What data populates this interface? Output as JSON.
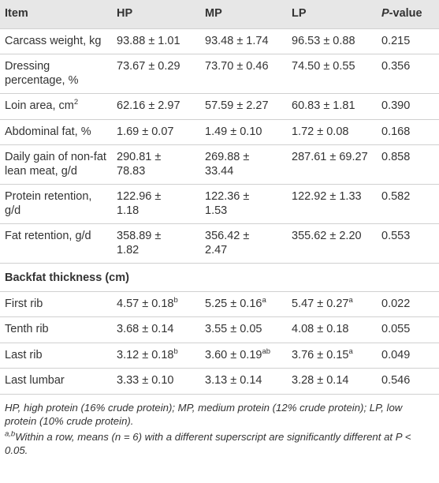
{
  "table": {
    "header": {
      "item": "Item",
      "hp": "HP",
      "mp": "MP",
      "lp": "LP",
      "p_italic": "P",
      "p_rest": "-value"
    },
    "rows": [
      {
        "item": "Carcass weight, kg",
        "hp": "93.88 ± 1.01",
        "mp": "93.48 ± 1.74",
        "lp": "96.53 ± 0.88",
        "p": "0.215"
      },
      {
        "item": "Dressing percentage, %",
        "hp": "73.67 ± 0.29",
        "mp": "73.70 ± 0.46",
        "lp": "74.50 ± 0.55",
        "p": "0.356"
      },
      {
        "item": {
          "text": "Loin area, cm",
          "sup": "2"
        },
        "hp": "62.16 ± 2.97",
        "mp": "57.59 ± 2.27",
        "lp": "60.83 ± 1.81",
        "p": "0.390"
      },
      {
        "item": "Abdominal fat, %",
        "hp": "1.69 ± 0.07",
        "mp": "1.49 ± 0.10",
        "lp": "1.72 ± 0.08",
        "p": "0.168"
      },
      {
        "item": "Daily gain of non-fat lean meat, g/d",
        "hp": "290.81 ± 78.83",
        "mp": "269.88 ± 33.44",
        "lp": "287.61 ± 69.27",
        "p": "0.858"
      },
      {
        "item": "Protein retention, g/d",
        "hp": "122.96 ± 1.18",
        "mp": "122.36 ± 1.53",
        "lp": "122.92 ± 1.33",
        "p": "0.582"
      },
      {
        "item": "Fat retention, g/d",
        "hp": "358.89 ± 1.82",
        "mp": "356.42 ± 2.47",
        "lp": "355.62 ± 2.20",
        "p": "0.553"
      },
      {
        "section": "Backfat thickness (cm)"
      },
      {
        "item": "First rib",
        "hp": {
          "text": "4.57 ± 0.18",
          "sup": "b"
        },
        "mp": {
          "text": "5.25 ± 0.16",
          "sup": "a"
        },
        "lp": {
          "text": "5.47 ± 0.27",
          "sup": "a"
        },
        "p": "0.022"
      },
      {
        "item": "Tenth rib",
        "hp": "3.68 ± 0.14",
        "mp": "3.55 ± 0.05",
        "lp": "4.08 ± 0.18",
        "p": "0.055"
      },
      {
        "item": "Last rib",
        "hp": {
          "text": "3.12 ± 0.18",
          "sup": "b"
        },
        "mp": {
          "text": "3.60 ± 0.19",
          "sup": "ab"
        },
        "lp": {
          "text": "3.76 ± 0.15",
          "sup": "a"
        },
        "p": "0.049"
      },
      {
        "item": "Last lumbar",
        "hp": "3.33 ± 0.10",
        "mp": "3.13 ± 0.14",
        "lp": "3.28 ± 0.14",
        "p": "0.546"
      }
    ]
  },
  "footnotes": {
    "abbreviations": "HP, high protein (16% crude protein); MP, medium protein (12% crude protein); LP, low protein (10% crude protein).",
    "significance_sup": "a,b",
    "significance": "Within a row, means (n = 6) with a different superscript are significantly different at P < 0.05."
  }
}
